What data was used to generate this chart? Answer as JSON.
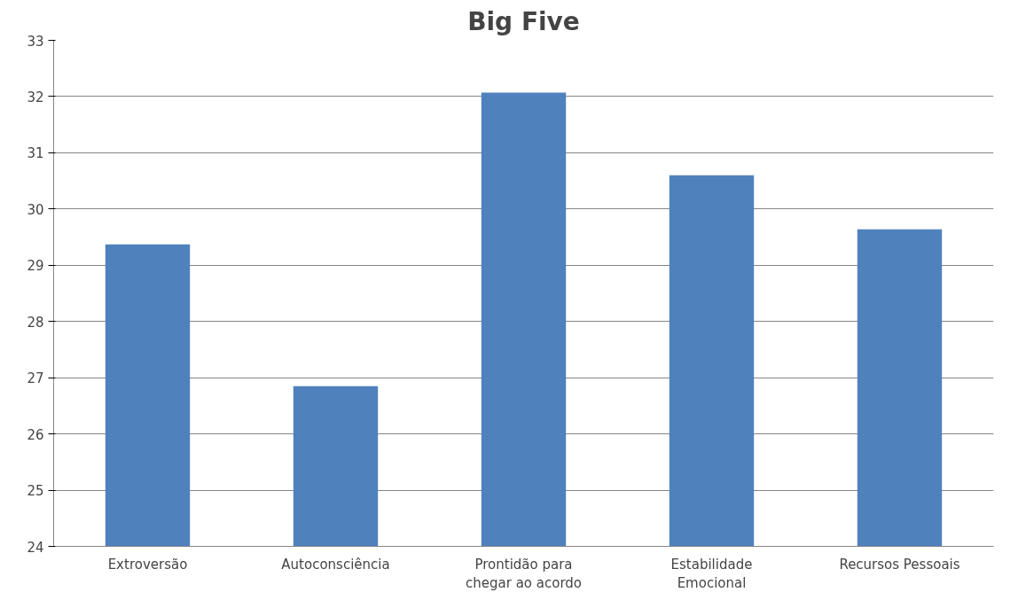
{
  "chart_data": {
    "type": "bar",
    "title": "Big Five",
    "categories": [
      "Extroversão",
      "Autoconsciência",
      "Prontidão para\nchegar ao acordo",
      "Estabilidade\nEmocional",
      "Recursos Pessoais"
    ],
    "values": [
      29.37,
      26.85,
      32.07,
      30.6,
      29.64
    ],
    "color": "#4f81bd",
    "ylim": [
      24,
      33
    ],
    "yticks": [
      24,
      25,
      26,
      27,
      28,
      29,
      30,
      31,
      32,
      33
    ],
    "grid": "y"
  }
}
